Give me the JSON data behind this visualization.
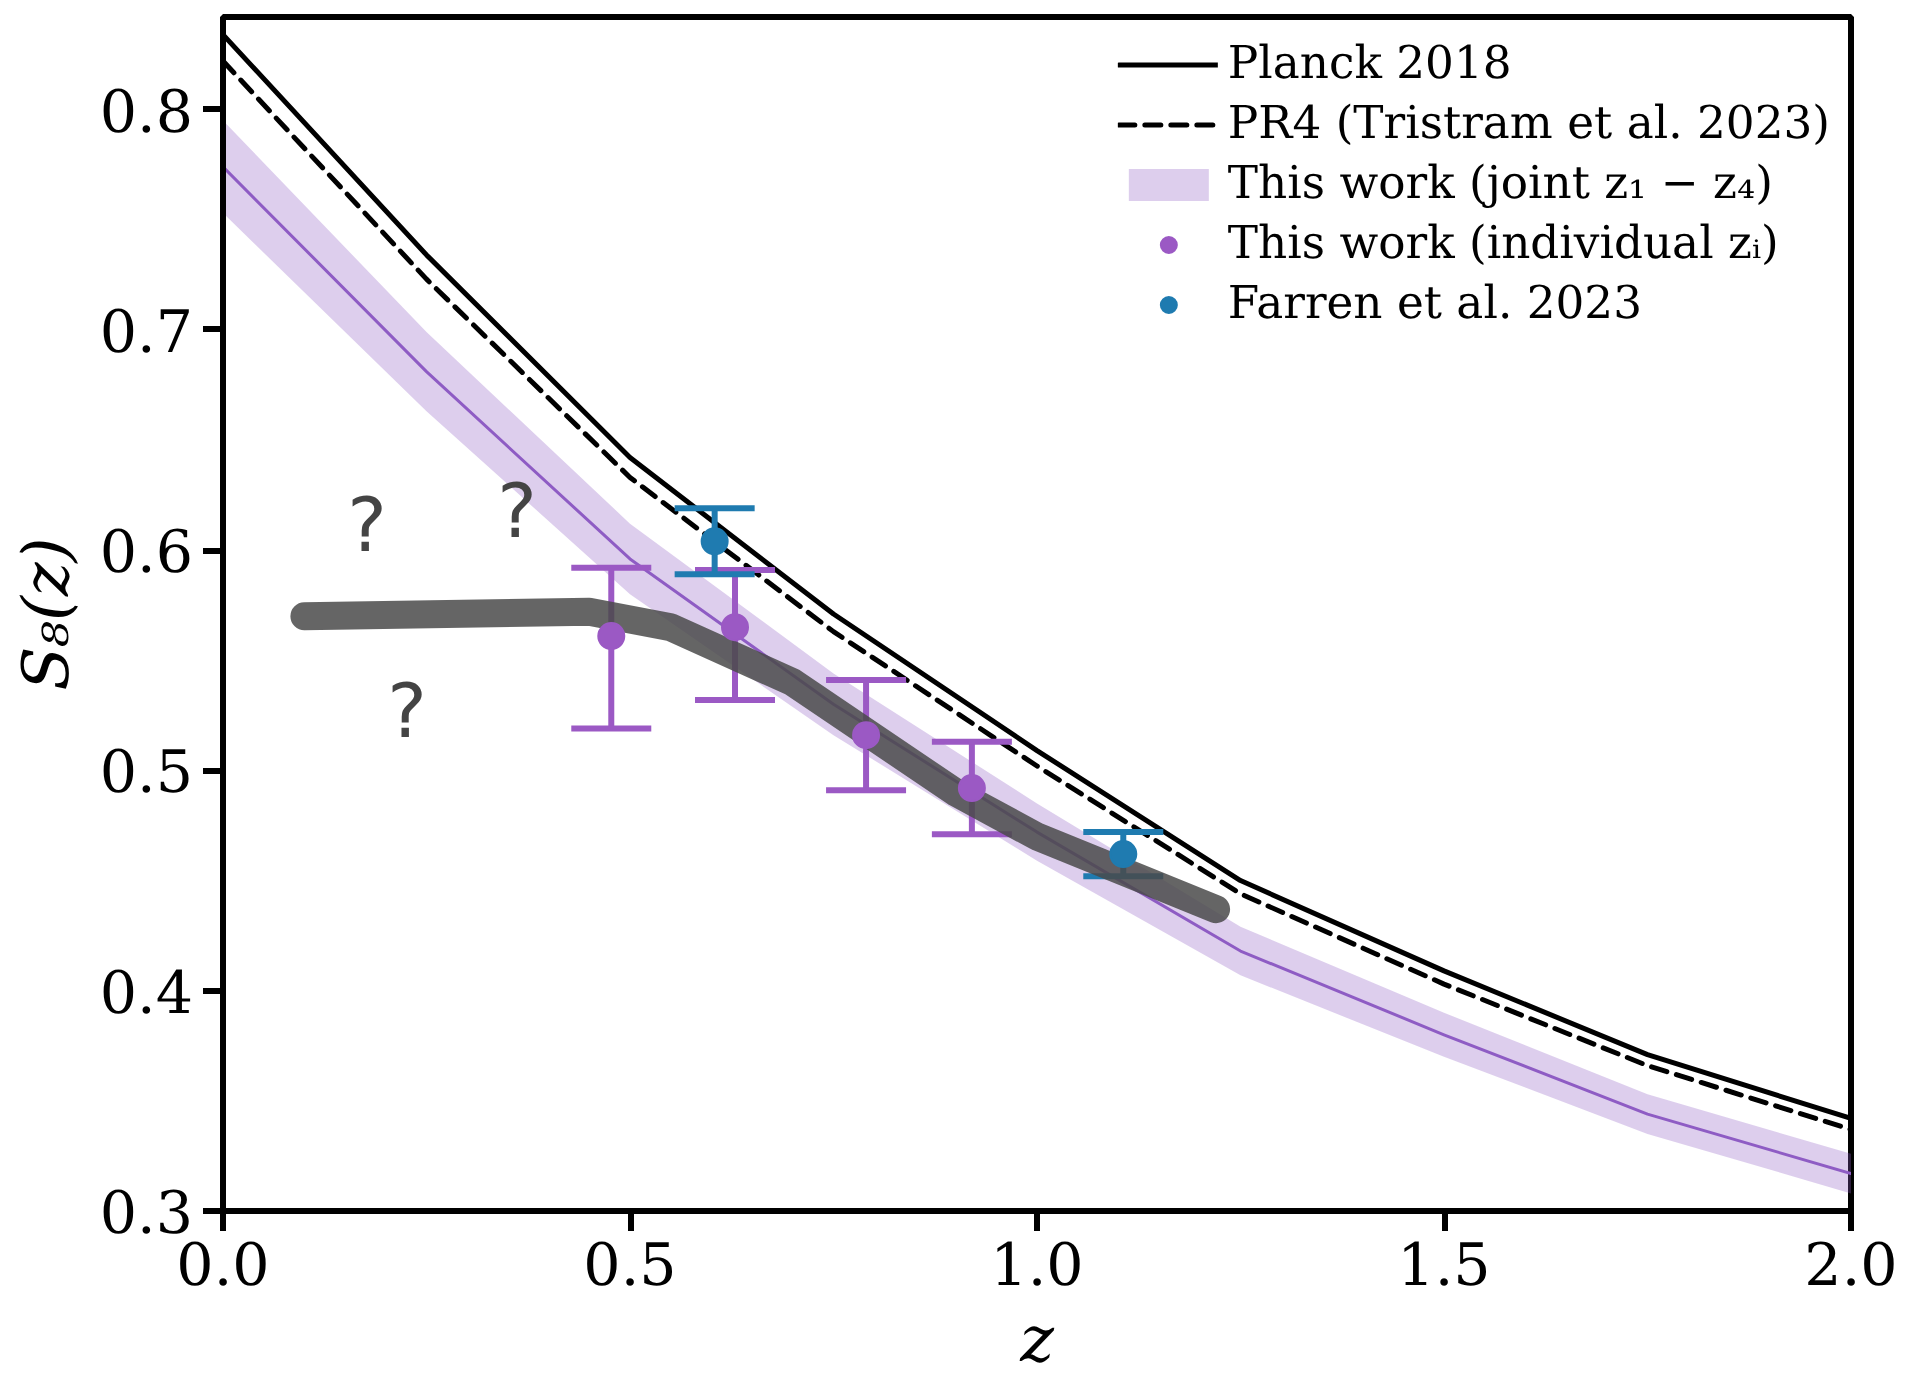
{
  "chart_data": {
    "type": "line",
    "xlabel": "z",
    "ylabel": "S₈(z)",
    "xlim": [
      0,
      2
    ],
    "ylim": [
      0.3,
      0.842
    ],
    "xticks": [
      {
        "value": 0,
        "label": "0.0"
      },
      0.5,
      {
        "value": 1,
        "label": "1.0"
      },
      1.5,
      {
        "value": 2,
        "label": "2.0"
      }
    ],
    "yticks": [
      0.3,
      0.4,
      0.5,
      0.6,
      0.7,
      0.8
    ],
    "grid": false,
    "legend": "top right",
    "series": [
      {
        "name": "Planck 2018",
        "color": "#000000",
        "line_style": "solid",
        "x": [
          0,
          0.25,
          0.5,
          0.75,
          1,
          1.25,
          1.5,
          1.75,
          2
        ],
        "values": [
          0.834,
          0.734,
          0.642,
          0.571,
          0.509,
          0.45,
          0.409,
          0.371,
          0.342
        ]
      },
      {
        "name": "PR4 (Tristram et al. 2023)",
        "color": "#000000",
        "line_style": "dashed",
        "x": [
          0,
          0.25,
          0.5,
          0.75,
          1,
          1.25,
          1.5,
          1.75,
          2
        ],
        "values": [
          0.822,
          0.723,
          0.633,
          0.563,
          0.502,
          0.444,
          0.403,
          0.366,
          0.337
        ]
      },
      {
        "name": "This work (joint z₁ − z₄)",
        "color": "#8e5cc4",
        "line_style": "solid",
        "x": [
          0,
          0.25,
          0.5,
          0.75,
          1,
          1.25,
          1.5,
          1.75,
          2
        ],
        "values": [
          0.774,
          0.681,
          0.596,
          0.53,
          0.472,
          0.418,
          0.38,
          0.344,
          0.317
        ],
        "lower": [
          0.753,
          0.663,
          0.58,
          0.516,
          0.459,
          0.407,
          0.37,
          0.335,
          0.308
        ],
        "upper": [
          0.795,
          0.699,
          0.612,
          0.544,
          0.485,
          0.429,
          0.39,
          0.353,
          0.326
        ]
      },
      {
        "type": "scatter",
        "name": "This work (individual zᵢ)",
        "color": "#9b59c4",
        "marker": "circle",
        "x": [
          0.477,
          0.629,
          0.79,
          0.92
        ],
        "values": [
          0.561,
          0.565,
          0.516,
          0.492
        ],
        "errors": [
          [
            0.519,
            0.592
          ],
          [
            0.532,
            0.591
          ],
          [
            0.491,
            0.541
          ],
          [
            0.471,
            0.513
          ]
        ]
      },
      {
        "type": "scatter",
        "name": "Farren et al. 2023",
        "color": "#1f7bb0",
        "marker": "circle",
        "x": [
          0.604,
          1.106
        ],
        "values": [
          0.604,
          0.462
        ],
        "errors": [
          [
            0.589,
            0.619
          ],
          [
            0.452,
            0.472
          ]
        ]
      },
      {
        "color": "#4a4a4a",
        "line_style": "solid",
        "x": [
          0.1,
          0.45,
          0.55,
          0.7,
          0.9,
          1.0,
          1.22
        ],
        "values": [
          0.57,
          0.572,
          0.565,
          0.54,
          0.49,
          0.47,
          0.437
        ]
      }
    ],
    "annotations": [
      "?",
      "?",
      "?"
    ]
  }
}
